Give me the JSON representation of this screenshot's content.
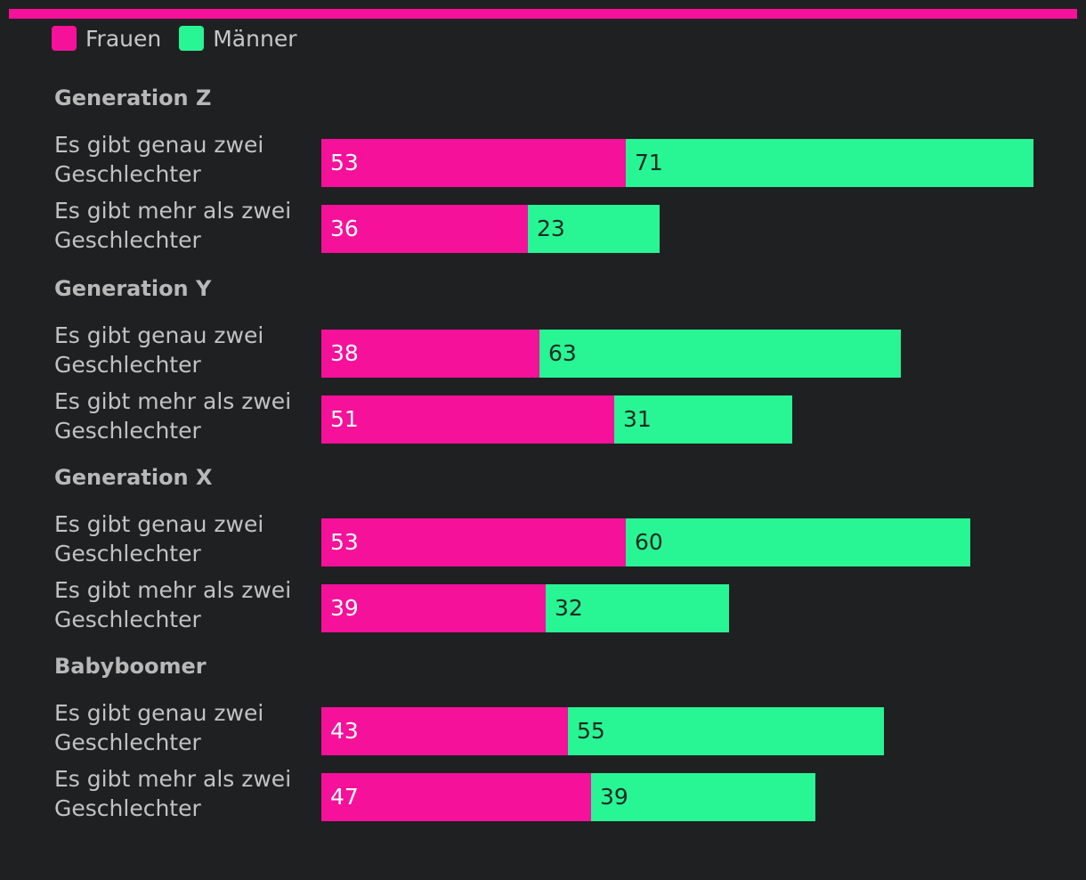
{
  "colors": {
    "frauen": "#f5119a",
    "maenner": "#28f594",
    "frauen_text": "#ffffff",
    "maenner_text": "#1f2a23"
  },
  "legend": [
    {
      "label": "Frauen",
      "color": "#f5119a"
    },
    {
      "label": "Männer",
      "color": "#28f594"
    }
  ],
  "chart_data": {
    "type": "bar",
    "orientation": "horizontal",
    "stacked": true,
    "series_names": [
      "Frauen",
      "Männer"
    ],
    "xlim": [
      0,
      125
    ],
    "groups": [
      {
        "title": "Generation Z",
        "rows": [
          {
            "label": "Es gibt genau zwei Geschlechter",
            "values": [
              53,
              71
            ]
          },
          {
            "label": "Es gibt mehr als zwei Geschlechter",
            "values": [
              36,
              23
            ]
          }
        ]
      },
      {
        "title": "Generation Y",
        "rows": [
          {
            "label": "Es gibt genau zwei Geschlechter",
            "values": [
              38,
              63
            ]
          },
          {
            "label": "Es gibt mehr als zwei Geschlechter",
            "values": [
              51,
              31
            ]
          }
        ]
      },
      {
        "title": "Generation X",
        "rows": [
          {
            "label": "Es gibt genau zwei Geschlechter",
            "values": [
              53,
              60
            ]
          },
          {
            "label": "Es gibt mehr als zwei Geschlechter",
            "values": [
              39,
              32
            ]
          }
        ]
      },
      {
        "title": "Babyboomer",
        "rows": [
          {
            "label": "Es gibt genau zwei Geschlechter",
            "values": [
              43,
              55
            ]
          },
          {
            "label": "Es gibt mehr als zwei Geschlechter",
            "values": [
              47,
              39
            ]
          }
        ]
      }
    ]
  }
}
